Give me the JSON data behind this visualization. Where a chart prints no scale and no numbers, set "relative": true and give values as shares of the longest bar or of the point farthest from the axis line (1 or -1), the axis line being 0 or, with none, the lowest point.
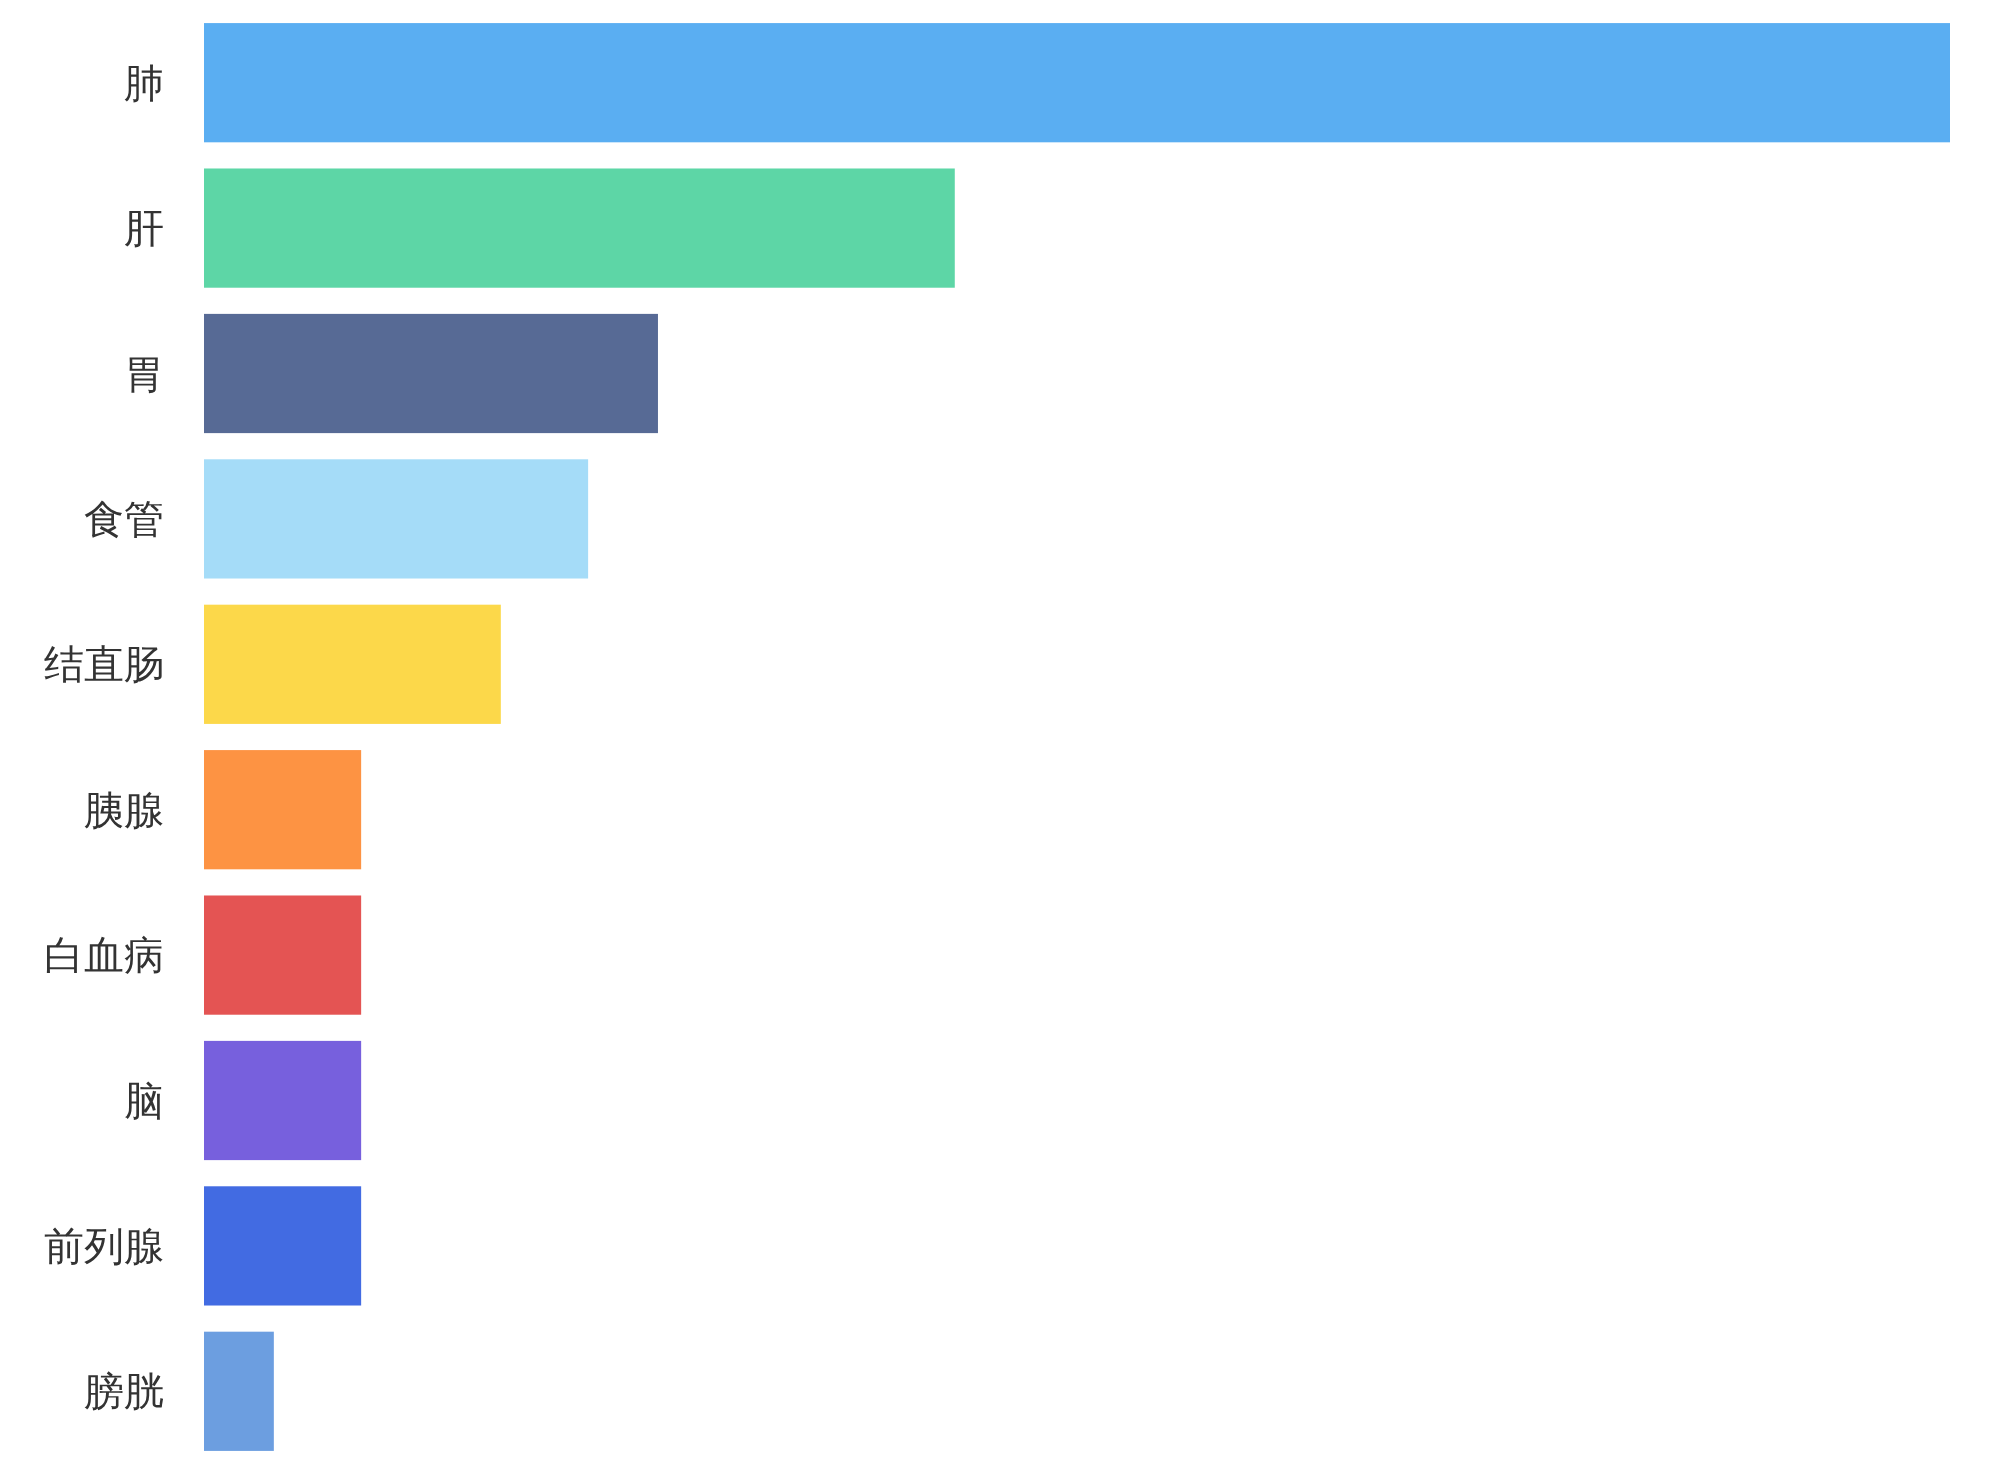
{
  "chart_data": {
    "type": "bar",
    "orientation": "horizontal",
    "relative": true,
    "categories": [
      "肺",
      "肝",
      "胃",
      "食管",
      "结直肠",
      "胰腺",
      "白血病",
      "脑",
      "前列腺",
      "膀胱"
    ],
    "values": [
      1,
      0.43,
      0.26,
      0.22,
      0.17,
      0.09,
      0.09,
      0.09,
      0.09,
      0.04
    ],
    "colors": [
      "#5aaef2",
      "#5dd6a6",
      "#576a95",
      "#a5dcf8",
      "#fcd84a",
      "#fd9343",
      "#e45453",
      "#7760dd",
      "#426be2",
      "#6c9ee0"
    ]
  }
}
